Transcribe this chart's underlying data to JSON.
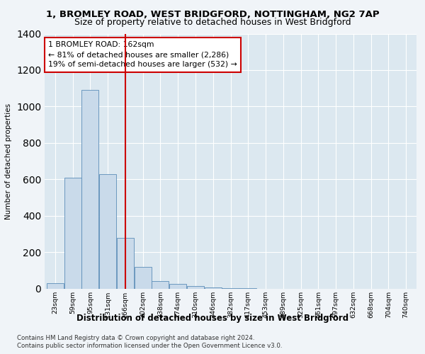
{
  "title_line1": "1, BROMLEY ROAD, WEST BRIDGFORD, NOTTINGHAM, NG2 7AP",
  "title_line2": "Size of property relative to detached houses in West Bridgford",
  "xlabel": "Distribution of detached houses by size in West Bridgford",
  "ylabel": "Number of detached properties",
  "bin_labels": [
    "23sqm",
    "59sqm",
    "95sqm",
    "131sqm",
    "166sqm",
    "202sqm",
    "238sqm",
    "274sqm",
    "310sqm",
    "346sqm",
    "382sqm",
    "417sqm",
    "453sqm",
    "489sqm",
    "525sqm",
    "561sqm",
    "597sqm",
    "632sqm",
    "668sqm",
    "704sqm",
    "740sqm"
  ],
  "bar_values": [
    30,
    610,
    1090,
    630,
    280,
    120,
    40,
    25,
    15,
    5,
    2,
    1,
    0,
    0,
    0,
    0,
    0,
    0,
    0,
    0,
    0
  ],
  "bar_color": "#c9daea",
  "bar_edge_color": "#5b8db8",
  "vline_pos": 4.0,
  "vline_color": "#cc0000",
  "annotation_text": "1 BROMLEY ROAD: 162sqm\n← 81% of detached houses are smaller (2,286)\n19% of semi-detached houses are larger (532) →",
  "annotation_box_facecolor": "#ffffff",
  "annotation_box_edgecolor": "#cc0000",
  "ylim_max": 1400,
  "yticks": [
    0,
    200,
    400,
    600,
    800,
    1000,
    1200,
    1400
  ],
  "footer_line1": "Contains HM Land Registry data © Crown copyright and database right 2024.",
  "footer_line2": "Contains public sector information licensed under the Open Government Licence v3.0.",
  "fig_bg": "#f0f4f8",
  "axes_bg": "#dce8f0"
}
